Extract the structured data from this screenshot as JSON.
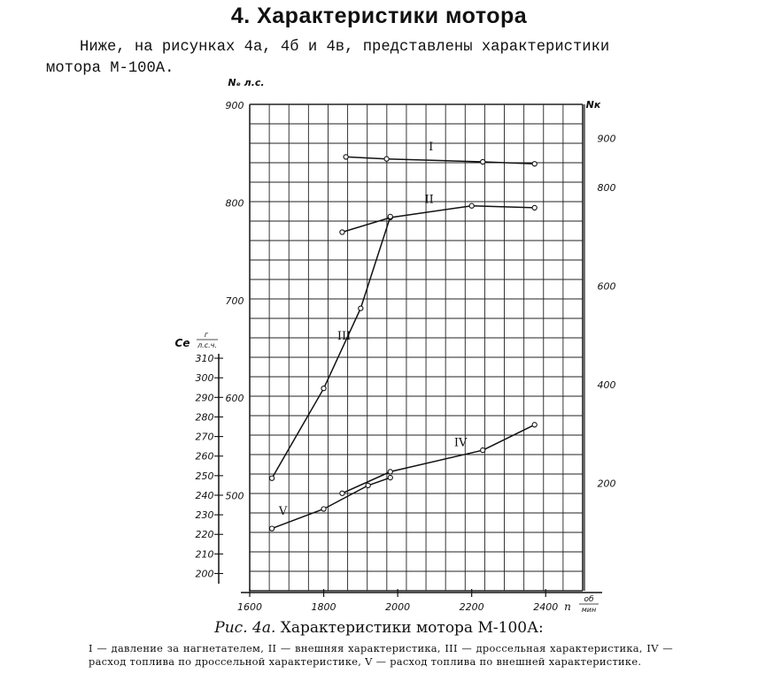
{
  "heading": "4. Характеристики мотора",
  "intro": {
    "line1": "Ниже, на рисунках  4а, 4б и 4в, представлены характеристики",
    "line2": "мотора М-100А."
  },
  "caption": {
    "label": "Рис. 4а.",
    "title": "Характеристики мотора М-100А:",
    "text": "I — давление за нагнетателем, II — внешняя характеристика, III — дроссельная характеристика, IV — расход топлива по дроссельной характеристике, V — расход топлива по внешней характеристике."
  },
  "chart_data": {
    "type": "line",
    "grid": true,
    "x": {
      "label": "n об/мин",
      "label_main": "n",
      "label_unit_top": "об",
      "label_unit_bottom": "мин",
      "range": [
        1600,
        2500
      ],
      "ticks": [
        1600,
        1800,
        2000,
        2200,
        2400
      ],
      "tick_labels": [
        "1600",
        "1800",
        "2000",
        "2200",
        "2400"
      ]
    },
    "y_left_pk": {
      "label": "Nₑ л.с.",
      "range": [
        400,
        900
      ],
      "ticks": [
        500,
        600,
        700,
        800,
        900
      ]
    },
    "y_left_ce": {
      "label": "Cₑ г/л.с.ч.",
      "label_main": "Ce",
      "label_unit_top": "г",
      "label_unit_bottom": "л.с.ч.",
      "range": [
        195,
        315
      ],
      "ticks": [
        200,
        210,
        220,
        230,
        240,
        250,
        260,
        270,
        280,
        290,
        300,
        310
      ]
    },
    "y_right_pk": {
      "label": "Nк",
      "range": [
        0,
        1000
      ],
      "ticks": [
        200,
        400,
        600,
        800,
        900
      ]
    },
    "series": [
      {
        "name": "I",
        "axis": "y_right_pk",
        "x": [
          1860,
          1970,
          2230,
          2370
        ],
        "y": [
          862,
          858,
          852,
          848
        ],
        "label_pos": [
          2090,
          875
        ]
      },
      {
        "name": "II",
        "axis": "y_left_pk",
        "x": [
          1850,
          1980,
          2200,
          2370
        ],
        "y": [
          770,
          785,
          797,
          795
        ],
        "label_pos": [
          2085,
          800
        ]
      },
      {
        "name": "III",
        "axis": "y_left_pk",
        "x": [
          1660,
          1800,
          1900,
          1980
        ],
        "y": [
          518,
          610,
          692,
          786
        ],
        "label_pos": [
          1855,
          660
        ]
      },
      {
        "name": "IV",
        "axis": "y_left_ce",
        "x": [
          1850,
          1980,
          2230,
          2370
        ],
        "y": [
          241,
          252,
          263,
          276
        ],
        "label_pos": [
          2170,
          265
        ]
      },
      {
        "name": "V",
        "axis": "y_left_ce",
        "x": [
          1660,
          1800,
          1920,
          1980
        ],
        "y": [
          223,
          233,
          245,
          249
        ],
        "label_pos": [
          1690,
          230
        ]
      }
    ]
  }
}
